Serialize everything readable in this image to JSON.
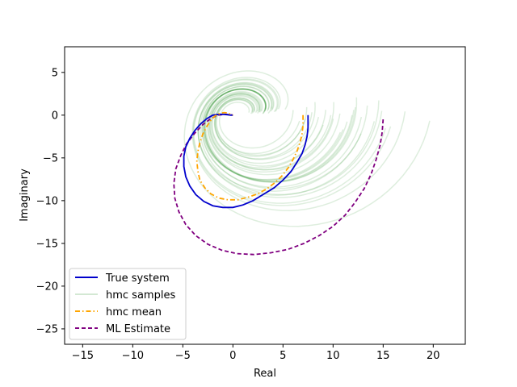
{
  "chart_data": {
    "type": "line",
    "title": "",
    "xlabel": "Real",
    "ylabel": "Imaginary",
    "xlim": [
      -16.8,
      23.2
    ],
    "ylim": [
      -26.8,
      8.0
    ],
    "xticks": [
      -15,
      -10,
      -5,
      0,
      5,
      10,
      15,
      20
    ],
    "yticks": [
      5,
      0,
      -5,
      -10,
      -15,
      -20,
      -25
    ],
    "xtick_labels": [
      "−15",
      "−10",
      "−5",
      "0",
      "5",
      "10",
      "15",
      "20"
    ],
    "ytick_labels": [
      "5",
      "0",
      "−5",
      "−10",
      "−15",
      "−20",
      "−25"
    ],
    "grid": false,
    "legend_position": "lower-left",
    "legend": [
      "True system",
      "hmc samples",
      "hmc mean",
      "ML Estimate"
    ],
    "colors": {
      "true_system": "#0000cc",
      "hmc_samples": "#228b22",
      "hmc_mean": "#ffa500",
      "ml_estimate": "#800080"
    },
    "series": [
      {
        "name": "True system",
        "style": "solid",
        "x": [
          7.5,
          7.5,
          7.4,
          7.2,
          6.9,
          6.4,
          5.8,
          5.0,
          4.1,
          3.0,
          2.0,
          1.0,
          0.0,
          -1.0,
          -2.0,
          -2.9,
          -3.7,
          -4.3,
          -4.7,
          -4.9,
          -4.9,
          -4.7,
          -4.3,
          -3.8,
          -3.2,
          -2.6,
          -2.0,
          -1.4,
          -0.9,
          -0.5,
          -0.2,
          0.0
        ],
        "y": [
          0.0,
          -1.5,
          -2.5,
          -3.5,
          -4.5,
          -5.5,
          -6.6,
          -7.6,
          -8.5,
          -9.3,
          -10.0,
          -10.5,
          -10.8,
          -10.8,
          -10.6,
          -10.1,
          -9.3,
          -8.3,
          -7.2,
          -6.0,
          -4.8,
          -3.7,
          -2.7,
          -1.8,
          -1.0,
          -0.4,
          0.0,
          0.1,
          0.1,
          0.05,
          0.0,
          0.0
        ]
      },
      {
        "name": "hmc mean",
        "style": "dashdot",
        "x": [
          7.0,
          7.0,
          6.9,
          6.7,
          6.4,
          6.0,
          5.5,
          4.9,
          4.2,
          3.4,
          2.5,
          1.5,
          0.5,
          -0.5,
          -1.4,
          -2.2,
          -2.8,
          -3.3,
          -3.5,
          -3.6,
          -3.5,
          -3.3,
          -3.0,
          -2.6,
          -2.2,
          -1.8,
          -1.3,
          -0.9,
          -0.5,
          -0.2,
          0.0
        ],
        "y": [
          0.0,
          -1.2,
          -2.2,
          -3.2,
          -4.2,
          -5.2,
          -6.2,
          -7.1,
          -7.9,
          -8.6,
          -9.2,
          -9.6,
          -9.9,
          -9.9,
          -9.7,
          -9.2,
          -8.5,
          -7.6,
          -6.5,
          -5.4,
          -4.3,
          -3.2,
          -2.2,
          -1.3,
          -0.6,
          -0.1,
          0.2,
          0.3,
          0.25,
          0.1,
          0.0
        ]
      },
      {
        "name": "ML Estimate",
        "style": "dashed",
        "x": [
          15.0,
          14.9,
          14.7,
          14.3,
          13.8,
          13.1,
          12.2,
          11.2,
          10.0,
          8.6,
          7.1,
          5.5,
          3.8,
          2.1,
          0.4,
          -1.1,
          -2.5,
          -3.7,
          -4.7,
          -5.4,
          -5.8,
          -5.9,
          -5.7,
          -5.2,
          -4.6,
          -3.8,
          -3.0,
          -2.2,
          -1.5,
          -0.8,
          -0.3,
          0.0
        ],
        "y": [
          -0.5,
          -2.0,
          -3.5,
          -5.2,
          -6.9,
          -8.6,
          -10.2,
          -11.7,
          -13.0,
          -14.1,
          -15.0,
          -15.7,
          -16.1,
          -16.3,
          -16.2,
          -15.8,
          -15.1,
          -14.1,
          -12.8,
          -11.3,
          -9.7,
          -8.0,
          -6.3,
          -4.7,
          -3.3,
          -2.1,
          -1.1,
          -0.4,
          0.0,
          0.1,
          0.05,
          0.0
        ]
      },
      {
        "name": "hmc samples",
        "style": "solid",
        "opacity": 0.15,
        "samples": [
          {
            "start_x": 8.5,
            "size": 1.1,
            "rot": 0.05
          },
          {
            "start_x": 9.2,
            "size": 1.2,
            "rot": -0.03
          },
          {
            "start_x": 10.0,
            "size": 1.3,
            "rot": 0.08
          },
          {
            "start_x": 10.8,
            "size": 1.4,
            "rot": -0.05
          },
          {
            "start_x": 11.5,
            "size": 1.5,
            "rot": 0.02
          },
          {
            "start_x": 12.3,
            "size": 1.6,
            "rot": -0.08
          },
          {
            "start_x": 13.0,
            "size": 1.7,
            "rot": 0.06
          },
          {
            "start_x": 13.8,
            "size": 1.8,
            "rot": -0.02
          },
          {
            "start_x": 14.5,
            "size": 1.9,
            "rot": 0.1
          },
          {
            "start_x": 15.2,
            "size": 2.0,
            "rot": -0.06
          },
          {
            "start_x": 16.0,
            "size": 2.1,
            "rot": 0.04
          },
          {
            "start_x": 17.0,
            "size": 2.25,
            "rot": -0.1
          },
          {
            "start_x": 18.5,
            "size": 2.4,
            "rot": 0.03
          },
          {
            "start_x": 21.2,
            "size": 2.6,
            "rot": -0.04
          },
          {
            "start_x": 6.5,
            "size": 0.9,
            "rot": 0.12
          },
          {
            "start_x": 7.2,
            "size": 0.95,
            "rot": -0.12
          },
          {
            "start_x": 8.0,
            "size": 1.05,
            "rot": 0.15
          },
          {
            "start_x": 9.8,
            "size": 1.25,
            "rot": -0.15
          },
          {
            "start_x": 11.0,
            "size": 1.35,
            "rot": 0.18
          },
          {
            "start_x": 12.0,
            "size": 1.55,
            "rot": -0.18
          },
          {
            "start_x": 13.5,
            "size": 1.75,
            "rot": 0.2
          },
          {
            "start_x": 14.0,
            "size": 1.85,
            "rot": -0.2
          },
          {
            "start_x": 10.5,
            "size": 1.45,
            "rot": 0.0
          },
          {
            "start_x": 12.8,
            "size": 1.65,
            "rot": 0.0
          },
          {
            "start_x": 9.0,
            "size": 1.15,
            "rot": 0.22
          },
          {
            "start_x": 11.8,
            "size": 1.5,
            "rot": -0.22
          },
          {
            "start_x": 15.8,
            "size": 2.05,
            "rot": 0.14
          },
          {
            "start_x": 7.8,
            "size": 1.0,
            "rot": -0.07
          },
          {
            "start_x": 13.2,
            "size": 1.7,
            "rot": 0.09
          },
          {
            "start_x": 16.5,
            "size": 2.15,
            "rot": -0.12
          }
        ]
      }
    ]
  }
}
